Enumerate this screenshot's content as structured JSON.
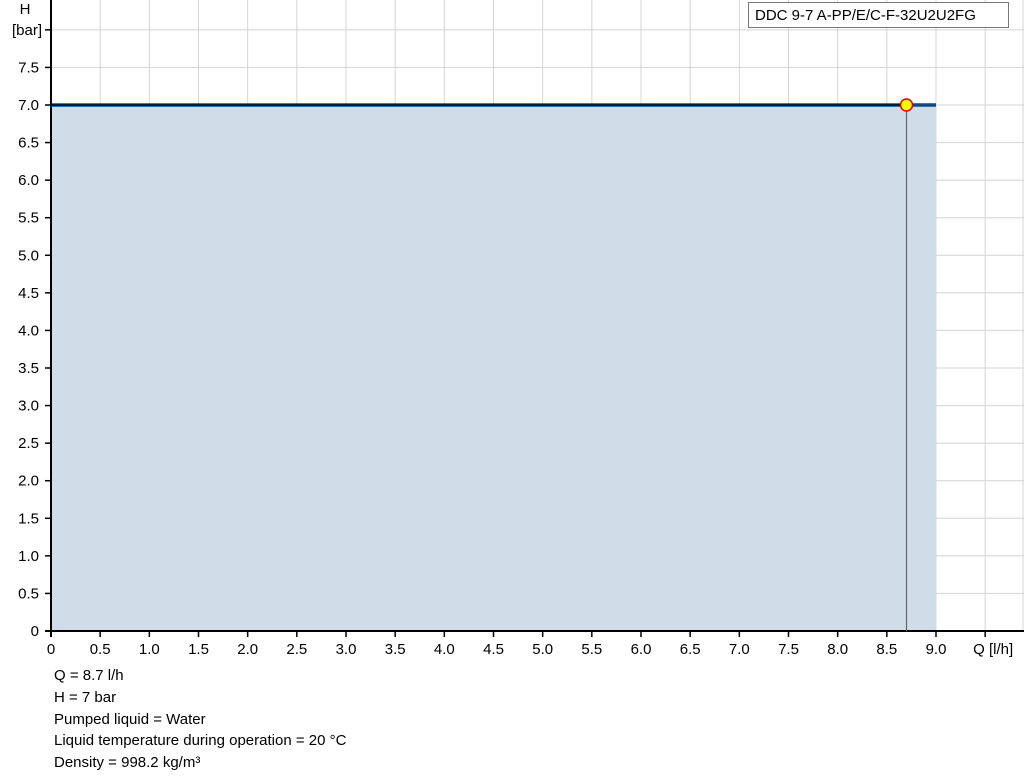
{
  "chart_data": {
    "type": "area",
    "legend": "DDC 9-7 A-PP/E/C-F-32U2U2FG",
    "legend_placement": "top-right",
    "xlabel": "Q [l/h]",
    "ylabel_top": "H",
    "ylabel_unit": "[bar]",
    "xlim": [
      0,
      9.5
    ],
    "ylim": [
      0,
      8.0
    ],
    "grid": true,
    "x_ticks": [
      "0",
      "0.5",
      "1.0",
      "1.5",
      "2.0",
      "2.5",
      "3.0",
      "3.5",
      "4.0",
      "4.5",
      "5.0",
      "5.5",
      "6.0",
      "6.5",
      "7.0",
      "7.5",
      "8.0",
      "8.5",
      "9.0"
    ],
    "y_ticks": [
      "0",
      "0.5",
      "1.0",
      "1.5",
      "2.0",
      "2.5",
      "3.0",
      "3.5",
      "4.0",
      "4.5",
      "5.0",
      "5.5",
      "6.0",
      "6.5",
      "7.0",
      "7.5"
    ],
    "series": [
      {
        "x": [
          0,
          9.0
        ],
        "y": [
          7.0,
          7.0
        ],
        "color": "#0b4a82",
        "fill": "#d0dce7"
      }
    ],
    "operating_point": {
      "x": 8.7,
      "y": 7.0,
      "color": "#ffff00",
      "stroke": "#e00000"
    }
  },
  "info": [
    "Q = 8.7 l/h",
    "H = 7 bar",
    "Pumped liquid = Water",
    "Liquid temperature during operation = 20 °C",
    "Density = 998.2 kg/m³"
  ]
}
